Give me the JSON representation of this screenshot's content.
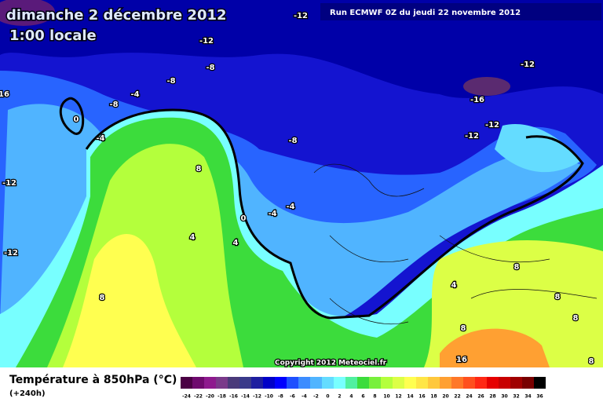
{
  "header": {
    "title": "dimanche 2 décembre 2012",
    "subtitle": "1:00 locale",
    "run": "Run ECMWF 0Z du jeudi 22 novembre 2012"
  },
  "map": {
    "copyright": "Copyright 2012 Meteociel.fr",
    "contour_labels": [
      "-12",
      "-12",
      "-8",
      "-8",
      "-4",
      "-8",
      "16",
      "0",
      "-4",
      "8",
      "-12",
      "-12",
      "0",
      "-4",
      "-4",
      "4",
      "4",
      "-8",
      "-12",
      "-16",
      "-12",
      "-12",
      "8",
      "8",
      "4",
      "8",
      "8",
      "8",
      "16",
      "8"
    ]
  },
  "legend": {
    "title": "Température à 850hPa (°C)",
    "lead_time": "(+240h)",
    "ticks": [
      -24,
      -22,
      -20,
      -18,
      -16,
      -14,
      -12,
      -10,
      -8,
      -6,
      -4,
      -2,
      0,
      2,
      4,
      6,
      8,
      10,
      12,
      14,
      16,
      18,
      20,
      22,
      24,
      26,
      28,
      30,
      32,
      34,
      36
    ],
    "colors": [
      "#4b0044",
      "#6f0a6e",
      "#8e1a8e",
      "#7a3a8a",
      "#4a3a7a",
      "#3a3a8a",
      "#1e1ea0",
      "#0000c8",
      "#0000ff",
      "#1e50ff",
      "#3c8cff",
      "#50b4ff",
      "#64dcff",
      "#78ffff",
      "#50f0a0",
      "#3cdc3c",
      "#78f03c",
      "#b4ff3c",
      "#dcff46",
      "#ffff50",
      "#ffe646",
      "#ffc83c",
      "#ffa032",
      "#ff7828",
      "#ff501e",
      "#ff2814",
      "#e60000",
      "#c80000",
      "#a00000",
      "#780000",
      "#000000"
    ]
  }
}
